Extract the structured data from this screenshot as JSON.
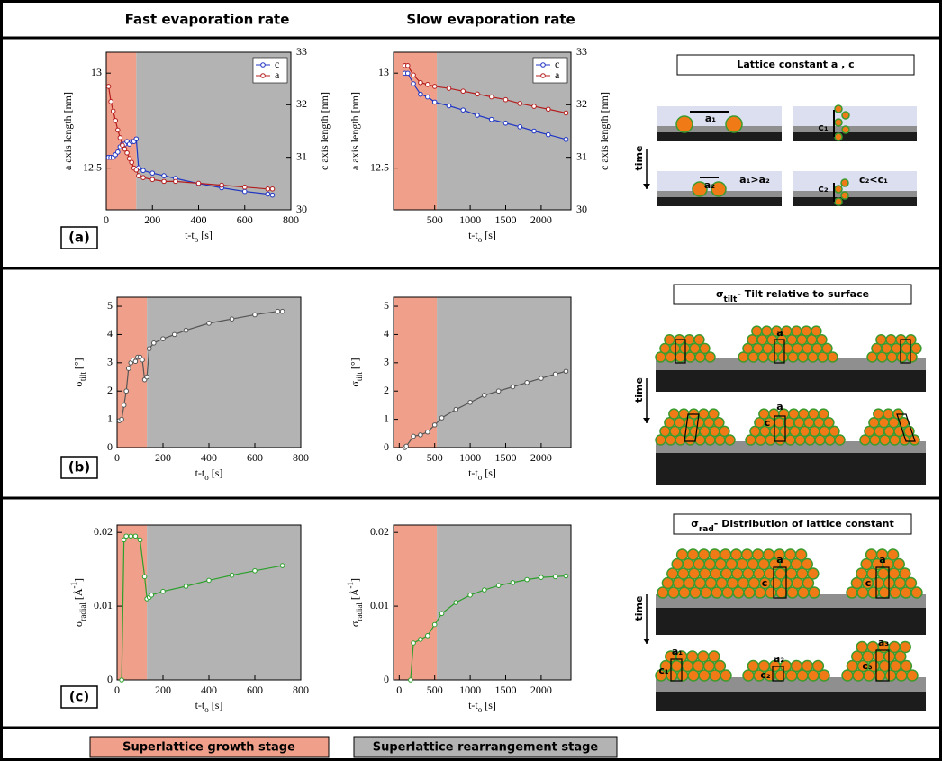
{
  "headers": [
    "Fast evaporation rate",
    "Slow evaporation rate"
  ],
  "panels": [
    "(a)",
    "(b)",
    "(c)"
  ],
  "stages": [
    "Superlattice growth stage",
    "Superlattice rearrangement stage"
  ],
  "diagrams": {
    "a": {
      "title": "Lattice constant a , c",
      "time": "time",
      "labels": [
        "a₁",
        "c₁",
        "a₂",
        "a₁>a₂",
        "c₂",
        "c₂<c₁"
      ]
    },
    "b": {
      "title": [
        "σ",
        "tilt",
        "- Tilt relative to surface"
      ],
      "time": "time",
      "labels": [
        "a",
        "a",
        "c"
      ]
    },
    "c": {
      "title": [
        "σ",
        "rad",
        "- Distribution of lattice constant"
      ],
      "time": "time",
      "labels": [
        "a",
        "c",
        "a",
        "c",
        "a₁",
        "c₁",
        "a₂",
        "c₂",
        "a₃",
        "c₃"
      ]
    }
  },
  "chart_data": [
    {
      "type": "line",
      "xlabel": [
        "t-t",
        "o",
        " [s]"
      ],
      "ylabel": "a axis length [nm]",
      "y2label": "c axis length [nm]",
      "xlim": [
        0,
        800
      ],
      "xticks": [
        0,
        200,
        400,
        600,
        800
      ],
      "ylim": [
        12.28,
        13.11
      ],
      "yticks": [
        12.5,
        13
      ],
      "y2lim": [
        30,
        33
      ],
      "y2ticks": [
        30,
        31,
        32,
        33
      ],
      "growth_end": 130,
      "legend": "upper right",
      "series": [
        {
          "name": "c",
          "color": "#1f35c4",
          "axis": "y2",
          "x": [
            10,
            20,
            30,
            40,
            50,
            60,
            70,
            80,
            90,
            100,
            110,
            120,
            130,
            140,
            160,
            200,
            250,
            300,
            400,
            500,
            600,
            700,
            720
          ],
          "values": [
            31,
            31,
            31,
            31.05,
            31.1,
            31.2,
            31.25,
            31.25,
            31.3,
            31.25,
            31.3,
            31.3,
            31.35,
            30.8,
            30.75,
            30.7,
            30.65,
            30.6,
            30.5,
            30.42,
            30.35,
            30.3,
            30.28
          ]
        },
        {
          "name": "a",
          "color": "#b51d1d",
          "x": [
            10,
            20,
            30,
            40,
            50,
            60,
            70,
            80,
            90,
            100,
            110,
            120,
            130,
            140,
            160,
            200,
            250,
            300,
            400,
            500,
            600,
            700,
            720
          ],
          "values": [
            12.93,
            12.85,
            12.8,
            12.75,
            12.7,
            12.66,
            12.62,
            12.6,
            12.58,
            12.55,
            12.53,
            12.5,
            12.49,
            12.46,
            12.45,
            12.44,
            12.43,
            12.43,
            12.42,
            12.41,
            12.4,
            12.39,
            12.39
          ]
        }
      ]
    },
    {
      "type": "line",
      "xlabel": [
        "t-t",
        "o",
        " [s]"
      ],
      "ylabel": "a axis length [nm]",
      "y2label": "c axis length [nm]",
      "xlim": [
        -80,
        2420
      ],
      "xticks": [
        500,
        1000,
        1500,
        2000
      ],
      "ylim": [
        12.28,
        13.11
      ],
      "yticks": [
        12.5,
        13
      ],
      "y2lim": [
        30,
        33
      ],
      "y2ticks": [
        30,
        31,
        32,
        33
      ],
      "growth_end": 530,
      "legend": "upper right",
      "series": [
        {
          "name": "c",
          "color": "#1f35c4",
          "axis": "y2",
          "x": [
            80,
            120,
            200,
            300,
            400,
            500,
            700,
            900,
            1100,
            1300,
            1500,
            1700,
            1900,
            2100,
            2350
          ],
          "values": [
            32.6,
            32.6,
            32.4,
            32.2,
            32.15,
            32.05,
            31.98,
            31.9,
            31.8,
            31.72,
            31.65,
            31.58,
            31.5,
            31.43,
            31.34
          ]
        },
        {
          "name": "a",
          "color": "#b51d1d",
          "x": [
            80,
            120,
            200,
            300,
            400,
            500,
            700,
            900,
            1100,
            1300,
            1500,
            1700,
            1900,
            2100,
            2350
          ],
          "values": [
            13.04,
            13.04,
            12.99,
            12.95,
            12.94,
            12.93,
            12.92,
            12.905,
            12.89,
            12.875,
            12.86,
            12.84,
            12.825,
            12.81,
            12.79
          ]
        }
      ]
    },
    {
      "type": "line",
      "xlabel": [
        "t-t",
        "o",
        " [s]"
      ],
      "ylabel": [
        "σ",
        "tilt",
        " [°]"
      ],
      "xlim": [
        0,
        800
      ],
      "xticks": [
        0,
        200,
        400,
        600,
        800
      ],
      "ylim": [
        0,
        5.32
      ],
      "yticks": [
        0,
        1,
        2,
        3,
        4,
        5
      ],
      "growth_end": 130,
      "series": [
        {
          "color": "#555555",
          "x": [
            10,
            20,
            30,
            40,
            50,
            60,
            70,
            80,
            90,
            100,
            110,
            120,
            130,
            140,
            160,
            200,
            250,
            300,
            400,
            500,
            600,
            700,
            720
          ],
          "values": [
            0.95,
            1.0,
            1.5,
            2.0,
            2.8,
            3.0,
            3.1,
            3.05,
            3.2,
            3.2,
            3.1,
            2.4,
            2.5,
            3.5,
            3.7,
            3.85,
            4.0,
            4.15,
            4.4,
            4.55,
            4.7,
            4.82,
            4.82
          ]
        }
      ]
    },
    {
      "type": "line",
      "xlabel": [
        "t-t",
        "o",
        " [s]"
      ],
      "ylabel": [
        "σ",
        "tilt",
        " [°]"
      ],
      "xlim": [
        -80,
        2420
      ],
      "xticks": [
        0,
        500,
        1000,
        1500,
        2000
      ],
      "ylim": [
        0,
        5.32
      ],
      "yticks": [
        0,
        1,
        2,
        3,
        4,
        5
      ],
      "growth_end": 530,
      "series": [
        {
          "color": "#555555",
          "x": [
            80,
            100,
            200,
            300,
            400,
            500,
            600,
            800,
            1000,
            1200,
            1400,
            1600,
            1800,
            2000,
            2200,
            2350
          ],
          "values": [
            0,
            0.05,
            0.4,
            0.45,
            0.55,
            0.8,
            1.05,
            1.35,
            1.6,
            1.85,
            2.0,
            2.15,
            2.3,
            2.45,
            2.6,
            2.7
          ]
        }
      ]
    },
    {
      "type": "line",
      "xlabel": [
        "t-t",
        "o",
        " [s]"
      ],
      "ylabel": [
        "σ",
        "radial",
        " [Å",
        "-1",
        "]"
      ],
      "xlim": [
        0,
        800
      ],
      "xticks": [
        0,
        200,
        400,
        600,
        800
      ],
      "ylim": [
        0,
        0.021
      ],
      "yticks": [
        0,
        0.01,
        0.02
      ],
      "growth_end": 130,
      "series": [
        {
          "color": "#2ca02c",
          "x": [
            20,
            30,
            40,
            60,
            80,
            100,
            120,
            130,
            140,
            150,
            200,
            300,
            400,
            500,
            600,
            720
          ],
          "values": [
            0,
            0.019,
            0.0195,
            0.0195,
            0.0195,
            0.019,
            0.014,
            0.011,
            0.0112,
            0.0115,
            0.012,
            0.0127,
            0.0135,
            0.0142,
            0.0148,
            0.0155
          ]
        }
      ]
    },
    {
      "type": "line",
      "xlabel": [
        "t-t",
        "o",
        " [s]"
      ],
      "ylabel": [
        "σ",
        "radial",
        " [Å",
        "-1",
        "]"
      ],
      "xlim": [
        -80,
        2420
      ],
      "xticks": [
        0,
        500,
        1000,
        1500,
        2000
      ],
      "ylim": [
        0,
        0.021
      ],
      "yticks": [
        0,
        0.01,
        0.02
      ],
      "growth_end": 530,
      "series": [
        {
          "color": "#2ca02c",
          "x": [
            160,
            200,
            300,
            400,
            500,
            600,
            800,
            1000,
            1200,
            1400,
            1600,
            1800,
            2000,
            2200,
            2350
          ],
          "values": [
            0,
            0.005,
            0.0055,
            0.006,
            0.0075,
            0.009,
            0.0105,
            0.0115,
            0.0122,
            0.0128,
            0.0132,
            0.0136,
            0.0139,
            0.014,
            0.0141
          ]
        }
      ]
    }
  ]
}
